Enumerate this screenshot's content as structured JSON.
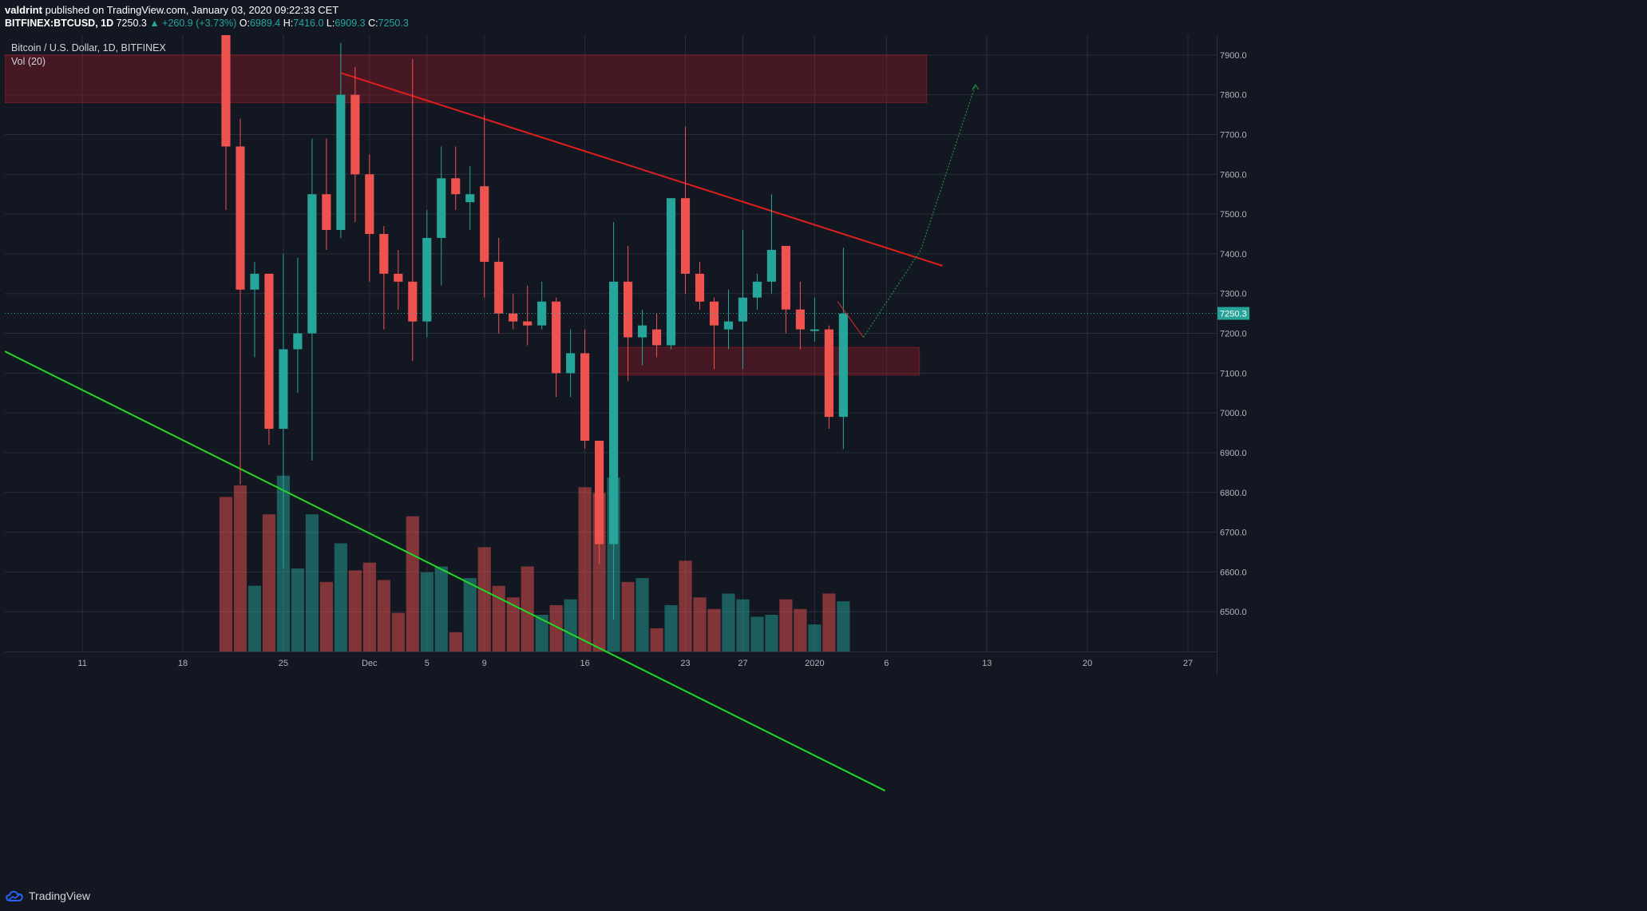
{
  "header": {
    "author": "valdrint",
    "published_text": "published on TradingView.com, January 03, 2020 09:22:33 CET",
    "symbol_full": "BITFINEX:BTCUSD, 1D",
    "last": "7250.3",
    "change": "▲ +260.9 (+3.73%)",
    "o_label": "O:",
    "o_value": "6989.4",
    "h_label": "H:",
    "h_value": "7416.0",
    "l_label": "L:",
    "l_value": "6909.3",
    "c_label": "C:",
    "c_value": "7250.3"
  },
  "legend": {
    "title": "Bitcoin / U.S. Dollar, 1D, BITFINEX",
    "volume": "Vol (20)"
  },
  "price_label": "7250.3",
  "footer": {
    "brand": "TradingView"
  },
  "chart_data": {
    "type": "candlestick",
    "symbol": "BITFINEX:BTCUSD",
    "interval": "1D",
    "ylim": [
      6400,
      7950
    ],
    "y_ticks": [
      6500,
      6600,
      6700,
      6800,
      6900,
      7000,
      7100,
      7200,
      7300,
      7400,
      7500,
      7600,
      7700,
      7800,
      7900
    ],
    "y_tick_labels": [
      "6500.0",
      "6600.0",
      "6700.0",
      "6800.0",
      "6900.0",
      "7000.0",
      "7100.0",
      "7200.0",
      "7300.0",
      "7400.0",
      "7500.0",
      "7600.0",
      "7700.0",
      "7800.0",
      "7900.0"
    ],
    "x_ticks": [
      {
        "label": "11",
        "day": -3
      },
      {
        "label": "18",
        "day": 4
      },
      {
        "label": "25",
        "day": 11
      },
      {
        "label": "Dec",
        "day": 17
      },
      {
        "label": "5",
        "day": 21
      },
      {
        "label": "9",
        "day": 25
      },
      {
        "label": "16",
        "day": 32
      },
      {
        "label": "23",
        "day": 39
      },
      {
        "label": "27",
        "day": 43
      },
      {
        "label": "2020",
        "day": 48
      },
      {
        "label": "6",
        "day": 53
      },
      {
        "label": "13",
        "day": 60
      },
      {
        "label": "20",
        "day": 67
      },
      {
        "label": "27",
        "day": 74
      }
    ],
    "x_range_days": [
      -8.4,
      76
    ],
    "last_price": 7250.3,
    "candles": [
      {
        "d": 7,
        "o": 7960,
        "h": 7960,
        "l": 7510,
        "c": 7670,
        "v": 0.8
      },
      {
        "d": 8,
        "o": 7670,
        "h": 7740,
        "l": 6820,
        "c": 7310,
        "v": 0.86
      },
      {
        "d": 9,
        "o": 7310,
        "h": 7380,
        "l": 7140,
        "c": 7350,
        "v": 0.34
      },
      {
        "d": 10,
        "o": 7350,
        "h": 7350,
        "l": 6920,
        "c": 6960,
        "v": 0.71
      },
      {
        "d": 11,
        "o": 6960,
        "h": 7400,
        "l": 6610,
        "c": 7160,
        "v": 0.91
      },
      {
        "d": 12,
        "o": 7160,
        "h": 7390,
        "l": 7050,
        "c": 7200,
        "v": 0.43
      },
      {
        "d": 13,
        "o": 7200,
        "h": 7690,
        "l": 6880,
        "c": 7550,
        "v": 0.71
      },
      {
        "d": 14,
        "o": 7550,
        "h": 7690,
        "l": 7410,
        "c": 7460,
        "v": 0.36
      },
      {
        "d": 15,
        "o": 7460,
        "h": 7930,
        "l": 7440,
        "c": 7800,
        "v": 0.56
      },
      {
        "d": 16,
        "o": 7800,
        "h": 7870,
        "l": 7480,
        "c": 7600,
        "v": 0.42
      },
      {
        "d": 17,
        "o": 7600,
        "h": 7650,
        "l": 7330,
        "c": 7450,
        "v": 0.46
      },
      {
        "d": 18,
        "o": 7450,
        "h": 7470,
        "l": 7210,
        "c": 7350,
        "v": 0.37
      },
      {
        "d": 19,
        "o": 7350,
        "h": 7410,
        "l": 7260,
        "c": 7330,
        "v": 0.2
      },
      {
        "d": 20,
        "o": 7330,
        "h": 7890,
        "l": 7130,
        "c": 7230,
        "v": 0.7
      },
      {
        "d": 21,
        "o": 7230,
        "h": 7510,
        "l": 7190,
        "c": 7440,
        "v": 0.41
      },
      {
        "d": 22,
        "o": 7440,
        "h": 7670,
        "l": 7320,
        "c": 7590,
        "v": 0.44
      },
      {
        "d": 23,
        "o": 7590,
        "h": 7670,
        "l": 7510,
        "c": 7550,
        "v": 0.1
      },
      {
        "d": 24,
        "o": 7530,
        "h": 7620,
        "l": 7460,
        "c": 7550,
        "v": 0.38
      },
      {
        "d": 25,
        "o": 7570,
        "h": 7750,
        "l": 7290,
        "c": 7380,
        "v": 0.54
      },
      {
        "d": 26,
        "o": 7380,
        "h": 7440,
        "l": 7200,
        "c": 7250,
        "v": 0.34
      },
      {
        "d": 27,
        "o": 7250,
        "h": 7300,
        "l": 7210,
        "c": 7230,
        "v": 0.28
      },
      {
        "d": 28,
        "o": 7230,
        "h": 7320,
        "l": 7170,
        "c": 7220,
        "v": 0.44
      },
      {
        "d": 29,
        "o": 7220,
        "h": 7330,
        "l": 7210,
        "c": 7280,
        "v": 0.19
      },
      {
        "d": 30,
        "o": 7280,
        "h": 7290,
        "l": 7040,
        "c": 7100,
        "v": 0.24
      },
      {
        "d": 31,
        "o": 7100,
        "h": 7210,
        "l": 7040,
        "c": 7150,
        "v": 0.27
      },
      {
        "d": 32,
        "o": 7150,
        "h": 7210,
        "l": 6910,
        "c": 6930,
        "v": 0.85
      },
      {
        "d": 33,
        "o": 6930,
        "h": 6930,
        "l": 6620,
        "c": 6670,
        "v": 0.82
      },
      {
        "d": 34,
        "o": 6670,
        "h": 7480,
        "l": 6480,
        "c": 7330,
        "v": 0.9
      },
      {
        "d": 35,
        "o": 7330,
        "h": 7420,
        "l": 7080,
        "c": 7190,
        "v": 0.36
      },
      {
        "d": 36,
        "o": 7190,
        "h": 7260,
        "l": 7120,
        "c": 7220,
        "v": 0.38
      },
      {
        "d": 37,
        "o": 7210,
        "h": 7250,
        "l": 7140,
        "c": 7170,
        "v": 0.12
      },
      {
        "d": 38,
        "o": 7170,
        "h": 7540,
        "l": 7160,
        "c": 7540,
        "v": 0.24
      },
      {
        "d": 39,
        "o": 7540,
        "h": 7720,
        "l": 7300,
        "c": 7350,
        "v": 0.47
      },
      {
        "d": 40,
        "o": 7350,
        "h": 7380,
        "l": 7260,
        "c": 7280,
        "v": 0.28
      },
      {
        "d": 41,
        "o": 7280,
        "h": 7290,
        "l": 7110,
        "c": 7220,
        "v": 0.22
      },
      {
        "d": 42,
        "o": 7210,
        "h": 7310,
        "l": 7160,
        "c": 7230,
        "v": 0.3
      },
      {
        "d": 43,
        "o": 7230,
        "h": 7460,
        "l": 7110,
        "c": 7290,
        "v": 0.27
      },
      {
        "d": 44,
        "o": 7290,
        "h": 7350,
        "l": 7260,
        "c": 7330,
        "v": 0.18
      },
      {
        "d": 45,
        "o": 7330,
        "h": 7550,
        "l": 7300,
        "c": 7410,
        "v": 0.19
      },
      {
        "d": 46,
        "o": 7420,
        "h": 7420,
        "l": 7200,
        "c": 7260,
        "v": 0.27
      },
      {
        "d": 47,
        "o": 7260,
        "h": 7330,
        "l": 7160,
        "c": 7210,
        "v": 0.22
      },
      {
        "d": 48,
        "o": 7210,
        "h": 7290,
        "l": 7180,
        "c": 7210,
        "v": 0.14
      },
      {
        "d": 49,
        "o": 7210,
        "h": 7220,
        "l": 6960,
        "c": 6990,
        "v": 0.3
      },
      {
        "d": 50,
        "o": 6990,
        "h": 7416,
        "l": 6909,
        "c": 7250,
        "v": 0.26
      }
    ],
    "zones": [
      {
        "d1": -8.4,
        "d2": 55.8,
        "p1": 7900,
        "p2": 7780
      },
      {
        "d1": 34,
        "d2": 55.3,
        "p1": 7165,
        "p2": 7095
      }
    ],
    "trendlines": [
      {
        "name": "resistance",
        "color": "#e01e1e",
        "d1": 15,
        "p1": 7855,
        "d2": 56.9,
        "p2": 7370
      },
      {
        "name": "support",
        "color": "#22d922",
        "d1": -8.4,
        "p1": 7155,
        "d2": 52.9,
        "p2": 6050
      }
    ],
    "projection": {
      "red": [
        {
          "d": 49.6,
          "p": 7280
        },
        {
          "d": 51.4,
          "p": 7190
        }
      ],
      "green": [
        {
          "d": 51.4,
          "p": 7190
        },
        {
          "d": 55.4,
          "p": 7410
        },
        {
          "d": 59.2,
          "p": 7825
        }
      ]
    }
  }
}
